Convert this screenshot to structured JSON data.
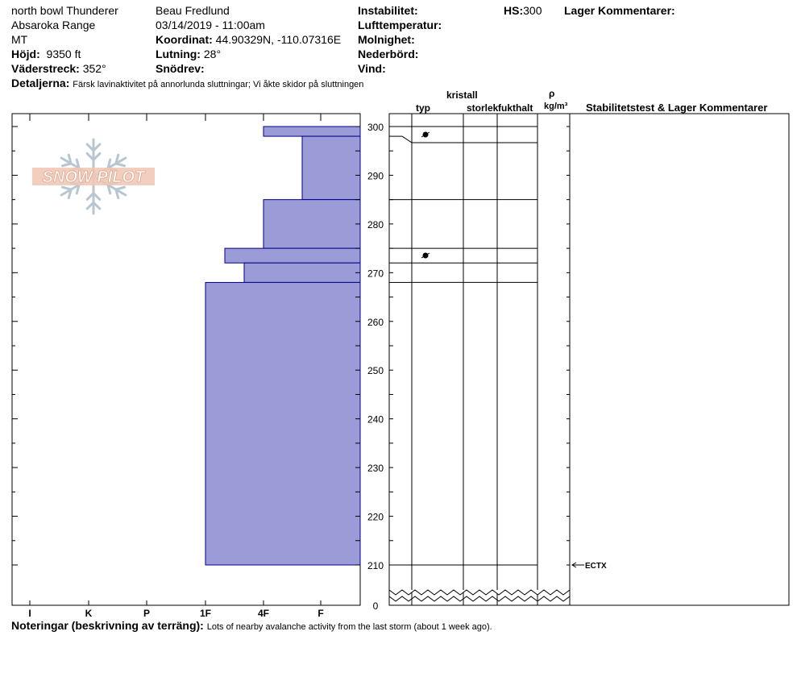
{
  "header": {
    "location": "north bowl Thunderer",
    "range": "Absaroka Range",
    "state": "MT",
    "elevation_label": "Höjd:",
    "elevation_value": "9350 ft",
    "aspect_label": "Väderstreck:",
    "aspect_value": "352°",
    "details_label": "Detaljerna:",
    "details_value": "Färsk lavinaktivitet på annorlunda sluttningar; Vi åkte skidor på sluttningen",
    "observer": "Beau  Fredlund",
    "datetime": "03/14/2019 - 11:00am",
    "coord_label": "Koordinat:",
    "coord_value": "44.90329N, -110.07316E",
    "slope_label": "Lutning:",
    "slope_value": "28°",
    "blowing_snow_label": "Snödrev:",
    "instability_label": "Instabilitet:",
    "air_temp_label": "Lufttemperatur:",
    "cloud_label": "Molnighet:",
    "precip_label": "Nederbörd:",
    "wind_label": "Vind:",
    "hs_label": "HS:",
    "hs_value": "300",
    "layer_comments_label": "Lager Kommentarer:"
  },
  "columns": {
    "crystal": "kristall",
    "type": "typ",
    "size": "storlek",
    "moisture": "fukthalt",
    "rho": "ρ",
    "density_unit": "kg/m³",
    "stability": "Stabilitetstest & Lager Kommentarer"
  },
  "logo_text": "SNOW PILOT",
  "notes_label": "Noteringar (beskrivning av terräng):",
  "notes_value": "Lots of nearby avalanche activity from the last storm (about 1 week ago).",
  "stability_test": "ECTX",
  "chart_data": {
    "type": "bar",
    "orientation": "horizontal",
    "y_axis": {
      "min": 0,
      "max": 300,
      "break_below": 210,
      "ticks": [
        0,
        210,
        220,
        230,
        240,
        250,
        260,
        270,
        280,
        290,
        300
      ]
    },
    "x_categories": [
      "I",
      "K",
      "P",
      "1F",
      "4F",
      "F"
    ],
    "layers": [
      {
        "top": 300,
        "bottom": 298,
        "hardness": "4F"
      },
      {
        "top": 298,
        "bottom": 285,
        "hardness": "4F-F"
      },
      {
        "top": 285,
        "bottom": 275,
        "hardness": "4F"
      },
      {
        "top": 275,
        "bottom": 272,
        "hardness": "1F+"
      },
      {
        "top": 272,
        "bottom": 268,
        "hardness": "1F-4F"
      },
      {
        "top": 268,
        "bottom": 210,
        "hardness": "1F"
      }
    ],
    "grain_forms": [
      {
        "height": 298.5,
        "symbol": "rounded-faceted"
      },
      {
        "height": 273.5,
        "symbol": "rounded-faceted"
      }
    ],
    "colors": {
      "fill": "#9b9bd7",
      "stroke": "#00008b"
    }
  }
}
